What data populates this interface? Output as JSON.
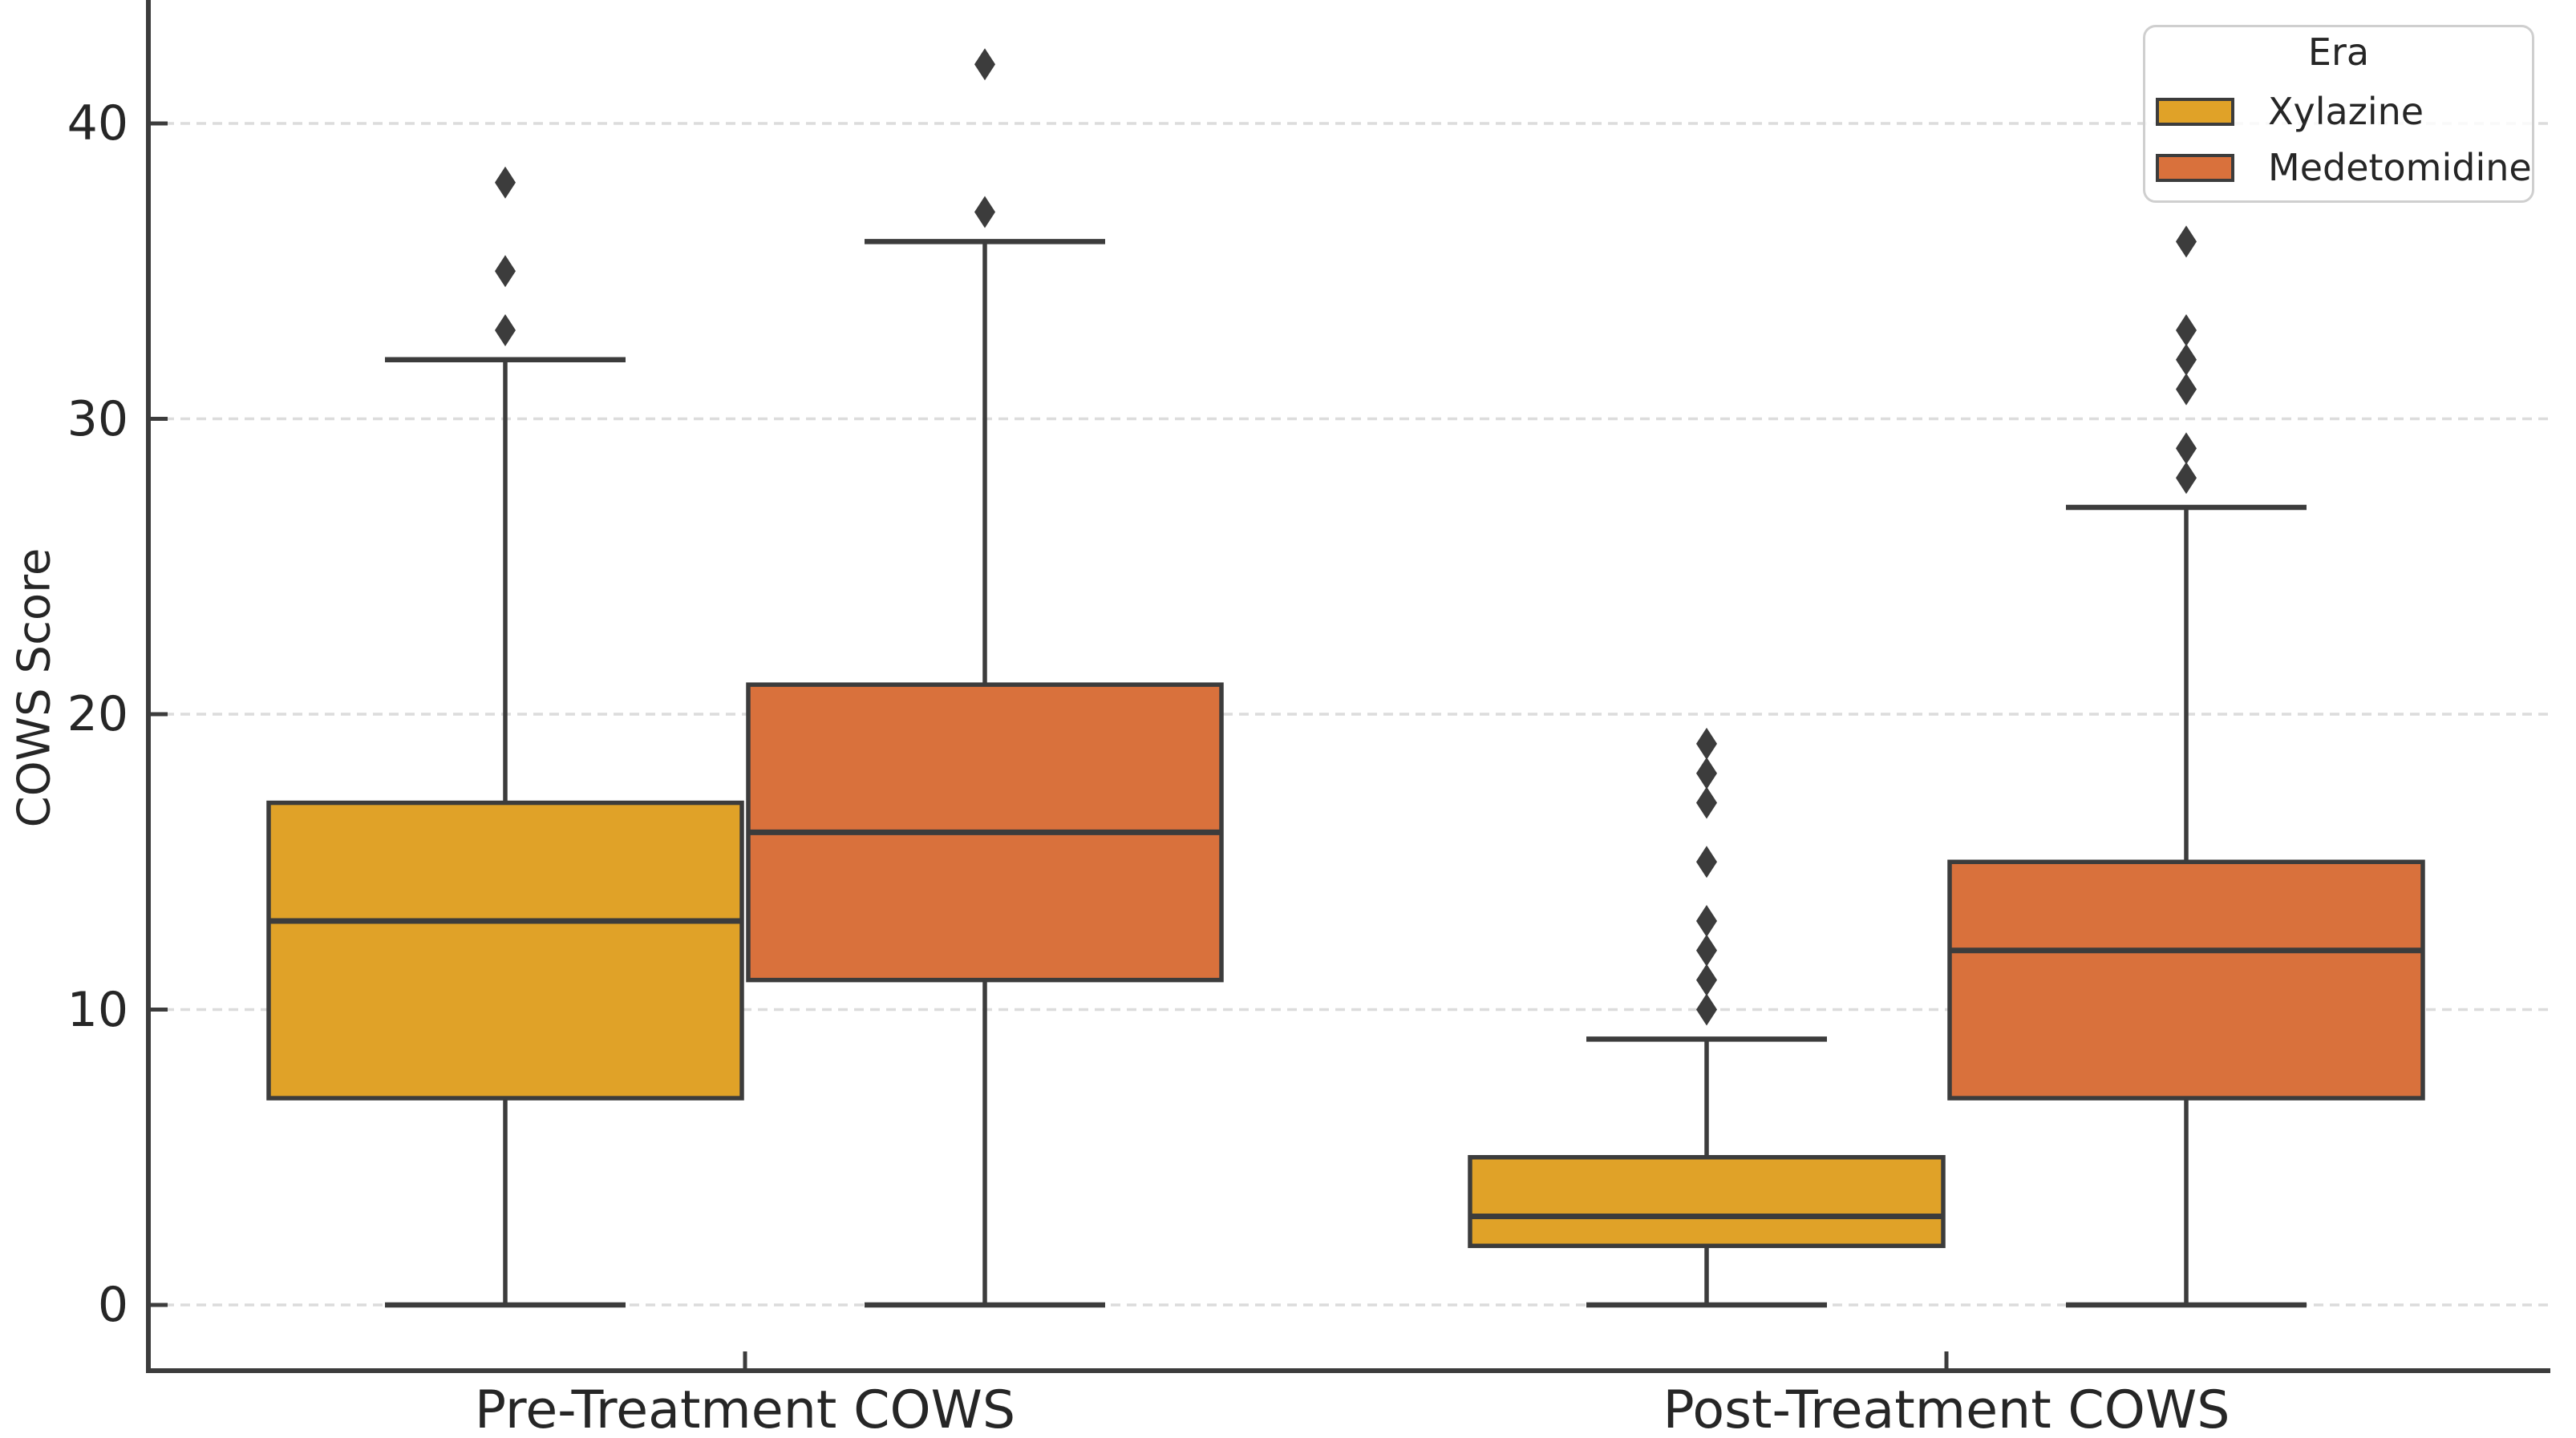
{
  "chart_data": {
    "type": "grouped_boxplot",
    "title": "",
    "xlabel": "",
    "ylabel": "COWS Score",
    "categories": [
      "Pre-Treatment COWS",
      "Post-Treatment COWS"
    ],
    "yticks": [
      0,
      10,
      20,
      30,
      40
    ],
    "ylim": [
      -2.25,
      44.2
    ],
    "grid": "horizontal dashed",
    "legend": {
      "title": "Era",
      "position": "upper right"
    },
    "series": [
      {
        "name": "Xylazine",
        "color": "#E0A228",
        "boxes": [
          {
            "category": "Pre-Treatment COWS",
            "whisker_low": 0,
            "q1": 7,
            "median": 13,
            "q3": 17,
            "whisker_high": 32,
            "outliers": [
              33,
              35,
              38
            ]
          },
          {
            "category": "Post-Treatment COWS",
            "whisker_low": 0,
            "q1": 2,
            "median": 3,
            "q3": 5,
            "whisker_high": 9,
            "outliers": [
              10,
              11,
              12,
              13,
              15,
              17,
              18,
              19
            ]
          }
        ]
      },
      {
        "name": "Medetomidine",
        "color": "#D9713C",
        "boxes": [
          {
            "category": "Pre-Treatment COWS",
            "whisker_low": 0,
            "q1": 11,
            "median": 16,
            "q3": 21,
            "whisker_high": 36,
            "outliers": [
              37,
              42
            ]
          },
          {
            "category": "Post-Treatment COWS",
            "whisker_low": 0,
            "q1": 7,
            "median": 12,
            "q3": 15,
            "whisker_high": 27,
            "outliers": [
              28,
              29,
              31,
              32,
              33,
              36
            ]
          }
        ]
      }
    ],
    "style": {
      "line_color": "#3C3C3C",
      "grid_color": "#DCDCDC",
      "text_color": "#262626",
      "background": "#FFFFFF",
      "outlier_marker": "diamond"
    }
  }
}
